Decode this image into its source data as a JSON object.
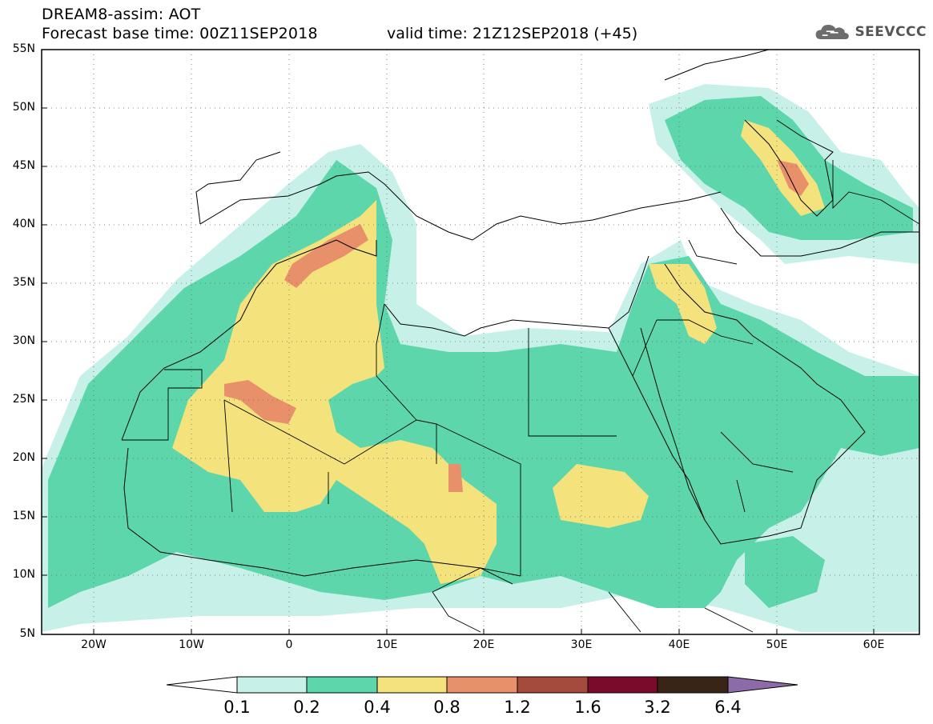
{
  "header": {
    "title": "DREAM8-assim: AOT",
    "base_time": "Forecast base time: 00Z11SEP2018",
    "valid_time": "valid time: 21Z12SEP2018 (+45)"
  },
  "logo": {
    "icon": "cloud-icon",
    "text": "SEEVCCC"
  },
  "map": {
    "lon_range": [
      -25,
      65
    ],
    "lat_range": [
      5,
      55
    ],
    "x_ticks": [
      "20W",
      "10W",
      "0",
      "10E",
      "20E",
      "30E",
      "40E",
      "50E",
      "60E"
    ],
    "y_ticks": [
      "55N",
      "50N",
      "45N",
      "40N",
      "35N",
      "30N",
      "25N",
      "20N",
      "15N",
      "10N",
      "5N"
    ],
    "grid": "dotted"
  },
  "colorbar": {
    "labels": [
      "0.1",
      "0.2",
      "0.4",
      "0.8",
      "1.2",
      "1.6",
      "3.2",
      "6.4"
    ],
    "colors": [
      "#ffffff",
      "#c6f0e8",
      "#5dd6ab",
      "#f4e27c",
      "#e8906a",
      "#a54b3c",
      "#7a0b2a",
      "#3a2317",
      "#8e6aa8"
    ]
  }
}
